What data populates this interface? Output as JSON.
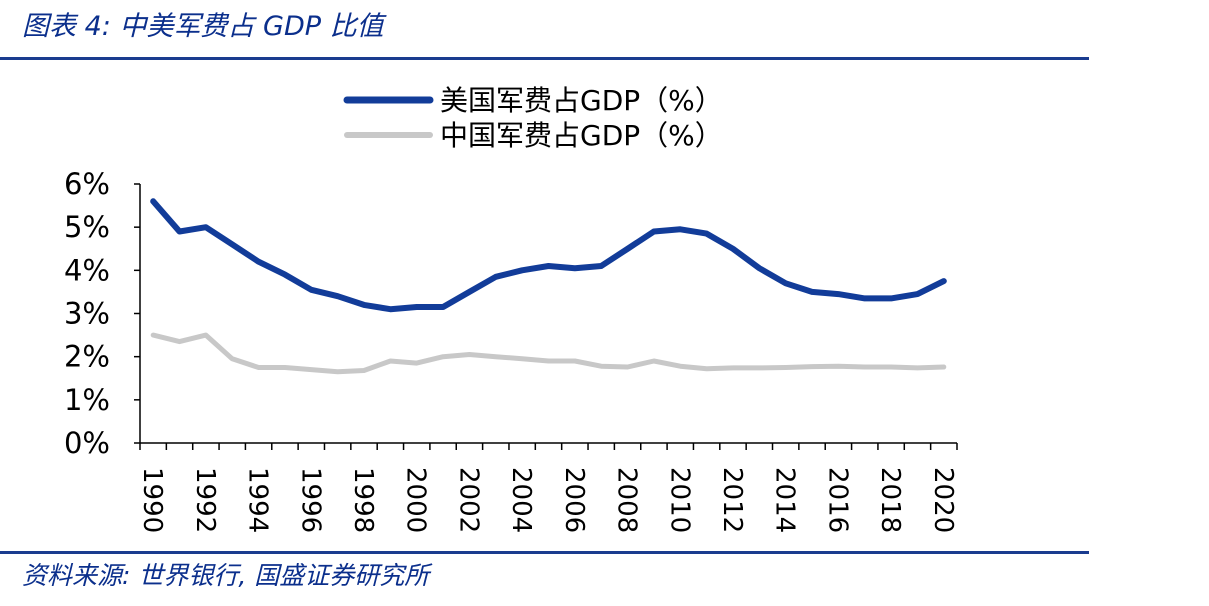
{
  "figure": {
    "title": "图表 4:  中美军费占 GDP 比值",
    "source": "资料来源:  世界银行,  国盛证券研究所"
  },
  "colors": {
    "accent": "#1a3c8f",
    "us_series": "#123c99",
    "cn_series": "#c8c8c8"
  },
  "chart_data": {
    "type": "line",
    "title": "",
    "xlabel": "",
    "ylabel": "",
    "ylim": [
      0,
      6
    ],
    "y_ticks": [
      "0%",
      "1%",
      "2%",
      "3%",
      "4%",
      "5%",
      "6%"
    ],
    "x_tick_labels": [
      "1990",
      "1992",
      "1994",
      "1996",
      "1998",
      "2000",
      "2002",
      "2004",
      "2006",
      "2008",
      "2010",
      "2012",
      "2014",
      "2016",
      "2018",
      "2020"
    ],
    "legend_position": "top",
    "grid": false,
    "x": [
      1990,
      1991,
      1992,
      1993,
      1994,
      1995,
      1996,
      1997,
      1998,
      1999,
      2000,
      2001,
      2002,
      2003,
      2004,
      2005,
      2006,
      2007,
      2008,
      2009,
      2010,
      2011,
      2012,
      2013,
      2014,
      2015,
      2016,
      2017,
      2018,
      2019,
      2020
    ],
    "series": [
      {
        "name": "美国军费占GDP（%）",
        "values": [
          5.6,
          4.9,
          5.0,
          4.6,
          4.2,
          3.9,
          3.55,
          3.4,
          3.2,
          3.1,
          3.15,
          3.15,
          3.5,
          3.85,
          4.0,
          4.1,
          4.05,
          4.1,
          4.5,
          4.9,
          4.95,
          4.85,
          4.5,
          4.05,
          3.7,
          3.5,
          3.45,
          3.35,
          3.35,
          3.45,
          3.75
        ]
      },
      {
        "name": "中国军费占GDP（%）",
        "values": [
          2.5,
          2.35,
          2.5,
          1.95,
          1.75,
          1.75,
          1.7,
          1.65,
          1.68,
          1.9,
          1.85,
          2.0,
          2.05,
          2.0,
          1.95,
          1.9,
          1.9,
          1.78,
          1.76,
          1.9,
          1.78,
          1.72,
          1.74,
          1.74,
          1.75,
          1.77,
          1.78,
          1.76,
          1.76,
          1.74,
          1.76
        ]
      }
    ]
  }
}
